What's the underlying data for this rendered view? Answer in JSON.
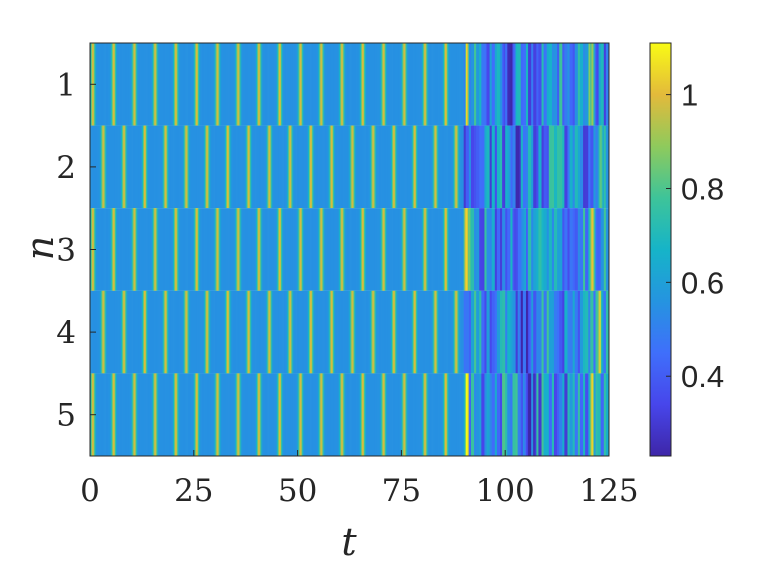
{
  "chart_data": {
    "type": "heatmap",
    "xlabel": "t",
    "ylabel": "n",
    "x_range": [
      0,
      125
    ],
    "y_categories": [
      "1",
      "2",
      "3",
      "4",
      "5"
    ],
    "x_ticks": [
      "0",
      "25",
      "50",
      "75",
      "100",
      "125"
    ],
    "colorbar": {
      "range": [
        0.23,
        1.11
      ],
      "ticks": [
        "0.4",
        "0.6",
        "0.8",
        "1"
      ],
      "colormap": "parula"
    },
    "pattern": {
      "baseline_value": 0.55,
      "peak_value": 1.0,
      "period": 5.0,
      "spike_rows_1_3_5": [
        0.7,
        5.7,
        10.7,
        15.7,
        20.7,
        25.7,
        30.7,
        35.7,
        40.7,
        45.7,
        50.7,
        55.7,
        60.7,
        65.7,
        70.7,
        75.7,
        80.7,
        85.7,
        90.7
      ],
      "spike_rows_2_4": [
        3.2,
        8.2,
        13.2,
        18.2,
        23.2,
        28.2,
        33.2,
        38.2,
        43.2,
        48.2,
        53.2,
        58.2,
        63.2,
        68.2,
        73.2,
        78.2,
        83.2,
        88.2
      ],
      "disordered_region_start": 90
    }
  }
}
